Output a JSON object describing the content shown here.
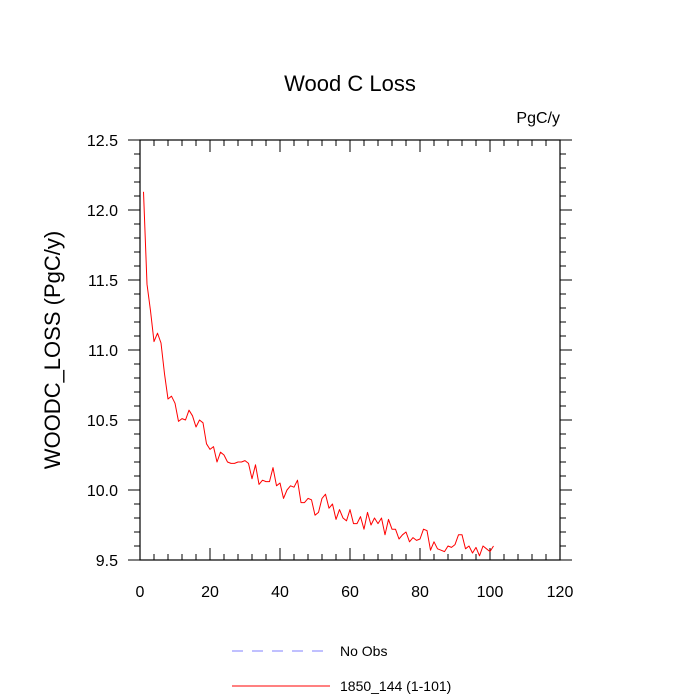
{
  "chart_data": {
    "type": "line",
    "title": "Wood C Loss",
    "units_label": "PgC/y",
    "xlabel": "",
    "ylabel": "WOODC_LOSS  (PgC/y)",
    "xlim": [
      0,
      120
    ],
    "ylim": [
      9.5,
      12.5
    ],
    "x_ticks": [
      0,
      20,
      40,
      60,
      80,
      100,
      120
    ],
    "x_tick_labels": [
      "0",
      "20",
      "40",
      "60",
      "80",
      "100",
      "120"
    ],
    "y_ticks": [
      9.5,
      10.0,
      10.5,
      11.0,
      11.5,
      12.0,
      12.5
    ],
    "y_tick_labels": [
      "9.5",
      "10.0",
      "10.5",
      "11.0",
      "11.5",
      "12.0",
      "12.5"
    ],
    "grid": false,
    "legend": [
      {
        "label": "No Obs",
        "color": "#8080ff",
        "dash": true
      },
      {
        "label": "1850_144 (1-101)",
        "color": "#ff0000",
        "dash": false
      }
    ],
    "series": [
      {
        "name": "1850_144 (1-101)",
        "color": "#ff0000",
        "x": [
          1,
          2,
          3,
          4,
          5,
          6,
          7,
          8,
          9,
          10,
          11,
          12,
          13,
          14,
          15,
          16,
          17,
          18,
          19,
          20,
          21,
          22,
          23,
          24,
          25,
          26,
          27,
          28,
          29,
          30,
          31,
          32,
          33,
          34,
          35,
          36,
          37,
          38,
          39,
          40,
          41,
          42,
          43,
          44,
          45,
          46,
          47,
          48,
          49,
          50,
          51,
          52,
          53,
          54,
          55,
          56,
          57,
          58,
          59,
          60,
          61,
          62,
          63,
          64,
          65,
          66,
          67,
          68,
          69,
          70,
          71,
          72,
          73,
          74,
          75,
          76,
          77,
          78,
          79,
          80,
          81,
          82,
          83,
          84,
          85,
          86,
          87,
          88,
          89,
          90,
          91,
          92,
          93,
          94,
          95,
          96,
          97,
          98,
          99,
          100,
          101
        ],
        "values": [
          12.13,
          11.47,
          11.28,
          11.06,
          11.12,
          11.05,
          10.83,
          10.65,
          10.67,
          10.62,
          10.49,
          10.51,
          10.5,
          10.57,
          10.53,
          10.45,
          10.5,
          10.48,
          10.33,
          10.29,
          10.31,
          10.2,
          10.27,
          10.25,
          10.2,
          10.19,
          10.19,
          10.2,
          10.2,
          10.21,
          10.19,
          10.08,
          10.18,
          10.04,
          10.07,
          10.06,
          10.06,
          10.16,
          10.03,
          10.05,
          9.94,
          10.0,
          10.03,
          10.02,
          10.07,
          9.91,
          9.91,
          9.94,
          9.93,
          9.82,
          9.84,
          9.94,
          9.97,
          9.87,
          9.9,
          9.79,
          9.86,
          9.8,
          9.78,
          9.86,
          9.76,
          9.76,
          9.81,
          9.72,
          9.84,
          9.75,
          9.8,
          9.76,
          9.8,
          9.68,
          9.79,
          9.72,
          9.72,
          9.65,
          9.68,
          9.7,
          9.63,
          9.66,
          9.64,
          9.65,
          9.72,
          9.71,
          9.57,
          9.63,
          9.58,
          9.57,
          9.56,
          9.6,
          9.59,
          9.61,
          9.68,
          9.68,
          9.58,
          9.6,
          9.55,
          9.59,
          9.53,
          9.6,
          9.58,
          9.56,
          9.6
        ]
      }
    ]
  }
}
